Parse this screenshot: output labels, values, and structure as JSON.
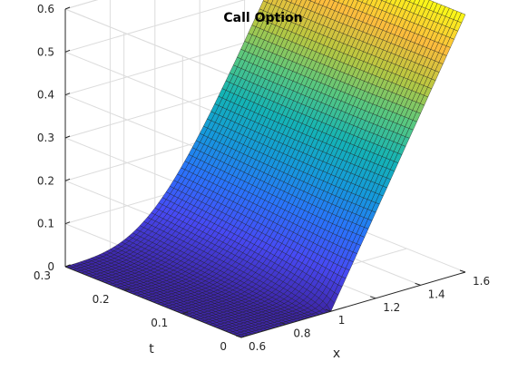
{
  "chart_data": {
    "type": "surface",
    "title": "Call Option",
    "xlabel": "x",
    "ylabel": "t",
    "zlabel": "",
    "xlim": [
      0.6,
      1.6
    ],
    "ylim": [
      0,
      0.3
    ],
    "zlim": [
      0,
      0.6
    ],
    "x_ticks": [
      "0.6",
      "0.8",
      "1",
      "1.2",
      "1.4",
      "1.6"
    ],
    "y_ticks": [
      "0",
      "0.1",
      "0.2",
      "0.3"
    ],
    "z_ticks": [
      "0",
      "0.1",
      "0.2",
      "0.3",
      "0.4",
      "0.5",
      "0.6"
    ],
    "grid": true,
    "colormap": "parula",
    "strike": 1,
    "surface_x": [
      0.6,
      0.8,
      1.0,
      1.2,
      1.4,
      1.6
    ],
    "surface_t": [
      0,
      0.1,
      0.2,
      0.3
    ],
    "surface_values": [
      [
        0.0,
        0.0,
        0.02,
        0.05
      ],
      [
        0.0,
        0.01,
        0.05,
        0.09
      ],
      [
        0.0,
        0.07,
        0.13,
        0.18
      ],
      [
        0.2,
        0.22,
        0.26,
        0.3
      ],
      [
        0.4,
        0.41,
        0.44,
        0.47
      ],
      [
        0.6,
        0.6,
        0.62,
        0.64
      ]
    ]
  }
}
